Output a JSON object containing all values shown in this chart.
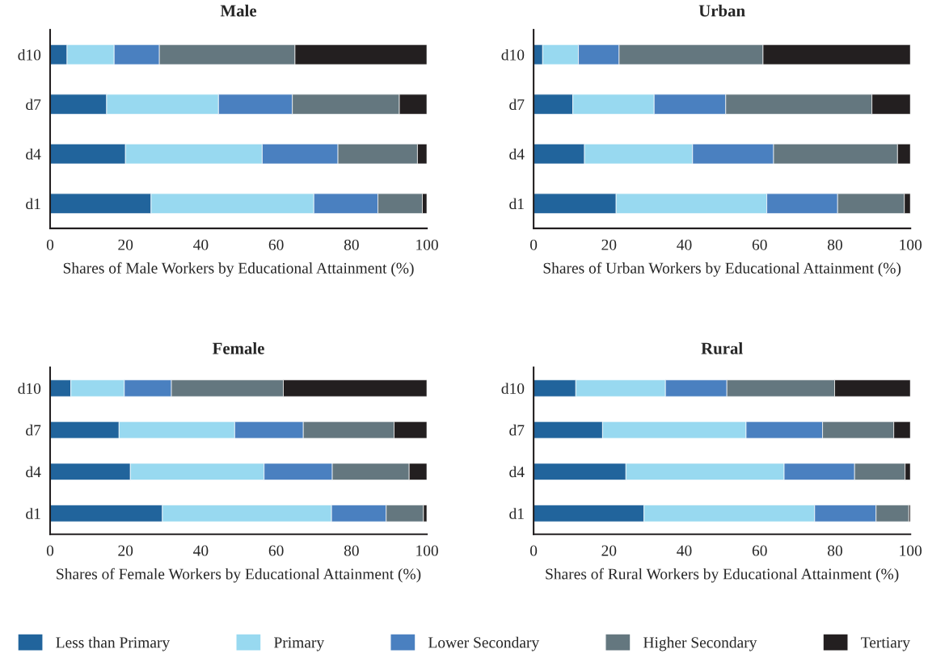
{
  "chart_data": [
    {
      "type": "bar",
      "orientation": "horizontal",
      "stacked": true,
      "title": "Male",
      "xlabel": "Shares of Male Workers by Educational Attainment (%)",
      "categories": [
        "d10",
        "d7",
        "d4",
        "d1"
      ],
      "xlim": [
        0,
        100
      ],
      "xticks": [
        0,
        20,
        40,
        60,
        80,
        100
      ],
      "grid": false,
      "legend": "bottom",
      "series": [
        {
          "name": "Less than Primary",
          "color": "#21649c",
          "values": [
            4.5,
            15,
            20,
            26.8
          ]
        },
        {
          "name": "Primary",
          "color": "#98d9f0",
          "values": [
            12.5,
            29.7,
            36.3,
            43.2
          ]
        },
        {
          "name": "Lower Secondary",
          "color": "#4a80c0",
          "values": [
            12,
            19.6,
            20.1,
            17
          ]
        },
        {
          "name": "Higher Secondary",
          "color": "#64777f",
          "values": [
            36,
            28.4,
            21.1,
            11.8
          ]
        },
        {
          "name": "Tertiary",
          "color": "#231f20",
          "values": [
            35,
            7.3,
            2.5,
            1.2
          ]
        }
      ]
    },
    {
      "type": "bar",
      "orientation": "horizontal",
      "stacked": true,
      "title": "Urban",
      "xlabel": "Shares of Urban Workers by Educational Attainment (%)",
      "categories": [
        "d10",
        "d7",
        "d4",
        "d1"
      ],
      "xlim": [
        0,
        100
      ],
      "xticks": [
        0,
        20,
        40,
        60,
        80,
        100
      ],
      "grid": false,
      "series": [
        {
          "color": "#21649c",
          "values": [
            2.4,
            10.4,
            13.5,
            21.9
          ]
        },
        {
          "color": "#98d9f0",
          "values": [
            9.5,
            21.6,
            28.7,
            40
          ]
        },
        {
          "color": "#4a80c0",
          "values": [
            10.8,
            19,
            21.5,
            18.8
          ]
        },
        {
          "color": "#64777f",
          "values": [
            38.2,
            38.8,
            32.9,
            17.7
          ]
        },
        {
          "color": "#231f20",
          "values": [
            39.1,
            10.2,
            3.4,
            1.6
          ]
        }
      ]
    },
    {
      "type": "bar",
      "orientation": "horizontal",
      "stacked": true,
      "title": "Female",
      "xlabel": "Shares of Female Workers by Educational Attainment (%)",
      "categories": [
        "d10",
        "d7",
        "d4",
        "d1"
      ],
      "xlim": [
        0,
        100
      ],
      "xticks": [
        0,
        20,
        40,
        60,
        80,
        100
      ],
      "grid": false,
      "series": [
        {
          "color": "#21649c",
          "values": [
            5.5,
            18.3,
            21.3,
            29.8
          ]
        },
        {
          "color": "#98d9f0",
          "values": [
            14.2,
            30.7,
            35.5,
            44.9
          ]
        },
        {
          "color": "#4a80c0",
          "values": [
            12.5,
            18.2,
            18.1,
            14.5
          ]
        },
        {
          "color": "#64777f",
          "values": [
            29.7,
            24.1,
            20.4,
            9.9
          ]
        },
        {
          "color": "#231f20",
          "values": [
            38.1,
            8.7,
            4.7,
            0.9
          ]
        }
      ]
    },
    {
      "type": "bar",
      "orientation": "horizontal",
      "stacked": true,
      "title": "Rural",
      "xlabel": "Shares of Rural Workers by Educational Attainment (%)",
      "categories": [
        "d10",
        "d7",
        "d4",
        "d1"
      ],
      "xlim": [
        0,
        100
      ],
      "xticks": [
        0,
        20,
        40,
        60,
        80,
        100
      ],
      "grid": false,
      "series": [
        {
          "color": "#21649c",
          "values": [
            11.2,
            18.3,
            24.5,
            29.3
          ]
        },
        {
          "color": "#98d9f0",
          "values": [
            23.8,
            38.1,
            42,
            45.3
          ]
        },
        {
          "color": "#4a80c0",
          "values": [
            16.3,
            20.3,
            18.7,
            16.3
          ]
        },
        {
          "color": "#64777f",
          "values": [
            28.6,
            18.9,
            13.4,
            8.7
          ]
        },
        {
          "color": "#231f20",
          "values": [
            20.1,
            4.4,
            1.4,
            0.4
          ]
        }
      ]
    }
  ]
}
